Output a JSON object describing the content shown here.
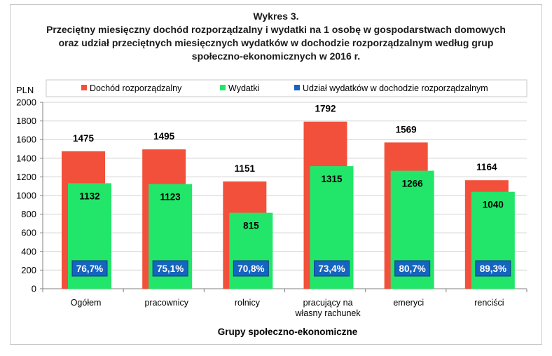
{
  "title_lines": [
    "Wykres 3.",
    "Przeciętny miesięczny dochód rozporządzalny i wydatki na 1 osobę w gospodarstwach domowych",
    "oraz udział przeciętnych miesięcznych wydatków w dochodzie rozporządzalnym według grup",
    "społeczno-ekonomicznych w 2016 r."
  ],
  "colors": {
    "income": "#f2503a",
    "expenses": "#22e66a",
    "share": "#1565c0",
    "grid": "#d0d0d0",
    "axis": "#808080"
  },
  "chart_data": {
    "type": "bar",
    "ylabel": "PLN",
    "xlabel": "Grupy społeczno-ekonomiczne",
    "ylim": [
      0,
      2000
    ],
    "yticks": [
      0,
      200,
      400,
      600,
      800,
      1000,
      1200,
      1400,
      1600,
      1800,
      2000
    ],
    "grid": true,
    "legend_position": "top",
    "categories": [
      [
        "Ogółem"
      ],
      [
        "pracownicy"
      ],
      [
        "rolnicy"
      ],
      [
        "pracujący na",
        "własny rachunek"
      ],
      [
        "emeryci"
      ],
      [
        "renciści"
      ]
    ],
    "series": [
      {
        "name": "Dochód rozporządzalny",
        "values": [
          1475,
          1495,
          1151,
          1792,
          1569,
          1164
        ]
      },
      {
        "name": "Wydatki",
        "values": [
          1132,
          1123,
          815,
          1315,
          1266,
          1040
        ]
      },
      {
        "name": "Udział wydatków w dochodzie rozporządzalnym",
        "values": [
          "76,7%",
          "75,1%",
          "70,8%",
          "73,4%",
          "80,7%",
          "89,3%"
        ]
      }
    ]
  }
}
